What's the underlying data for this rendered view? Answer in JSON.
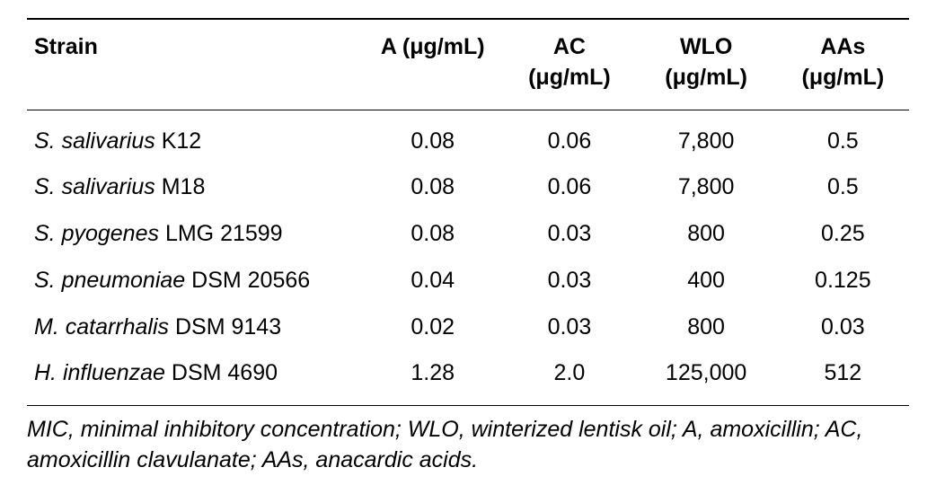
{
  "table": {
    "mu": "μ",
    "headers": {
      "strain": "Strain",
      "a_prefix": "A (",
      "a_suffix": "g/mL)",
      "ac_prefix": "AC",
      "ac_line2_open": "(",
      "ac_line2_close": "g/mL)",
      "wlo_prefix": "WLO",
      "wlo_line2_open": "(",
      "wlo_line2_close": "g/mL)",
      "aas_prefix": "AAs",
      "aas_line2_open": "(",
      "aas_line2_close": "g/mL)"
    },
    "rows": [
      {
        "genus": "S. salivarius",
        "rest": " K12",
        "a": "0.08",
        "ac": "0.06",
        "wlo": "7,800",
        "aas": "0.5"
      },
      {
        "genus": "S. salivarius",
        "rest": " M18",
        "a": "0.08",
        "ac": "0.06",
        "wlo": "7,800",
        "aas": "0.5"
      },
      {
        "genus": "S. pyogenes",
        "rest": " LMG 21599",
        "a": "0.08",
        "ac": "0.03",
        "wlo": "800",
        "aas": "0.25"
      },
      {
        "genus": "S. pneumoniae",
        "rest": " DSM 20566",
        "a": "0.04",
        "ac": "0.03",
        "wlo": "400",
        "aas": "0.125"
      },
      {
        "genus": "M. catarrhalis",
        "rest": " DSM 9143",
        "a": "0.02",
        "ac": "0.03",
        "wlo": "800",
        "aas": "0.03"
      },
      {
        "genus": "H. influenzae",
        "rest": " DSM 4690",
        "a": "1.28",
        "ac": "2.0",
        "wlo": "125,000",
        "aas": "512"
      }
    ],
    "footnote": "MIC, minimal inhibitory concentration; WLO, winterized lentisk oil; A, amoxicillin; AC, amoxicillin clavulanate; AAs, anacardic acids."
  }
}
